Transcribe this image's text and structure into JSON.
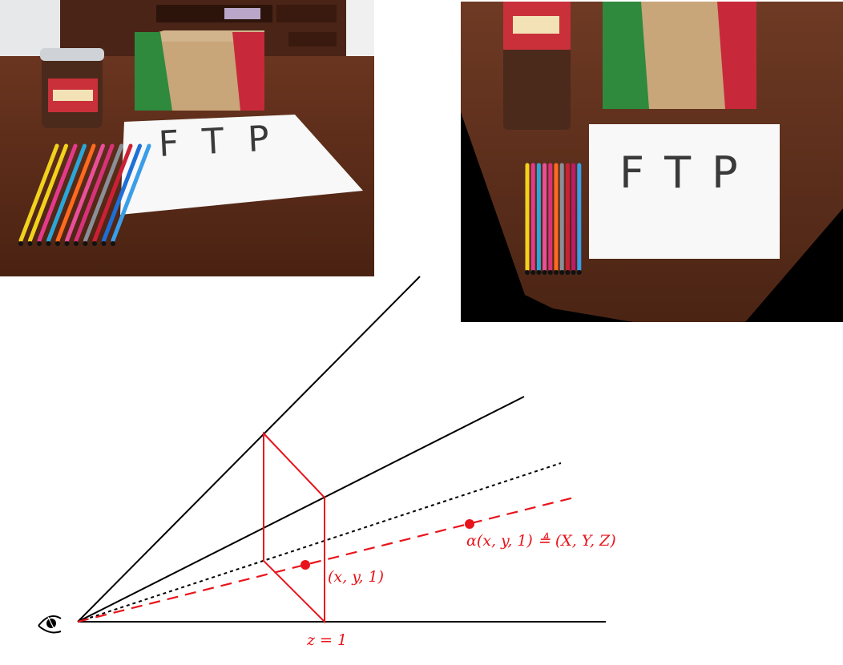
{
  "photo_left": {
    "paper_text": "FTP",
    "pen_colors": [
      "#f2d21c",
      "#f2d21c",
      "#e53a8c",
      "#2aa7d9",
      "#ff6a1f",
      "#ea4f9a",
      "#d8327a",
      "#8a8f98",
      "#cc2037",
      "#1e6fd6",
      "#3a9ee8"
    ]
  },
  "photo_right": {
    "paper_text": "FTP",
    "pen_colors": [
      "#f2d21c",
      "#e53a8c",
      "#2aa7d9",
      "#ea4f9a",
      "#d8327a",
      "#ff6a1f",
      "#8a8f98",
      "#cc2037",
      "#c01a6a",
      "#3a9ee8"
    ]
  },
  "diagram": {
    "label_point": "(x, y, 1)",
    "label_scaled": "α(x, y, 1) ≜ (X, Y, Z)",
    "label_plane": "z = 1",
    "colors": {
      "accent": "#e8141b",
      "line": "#000000"
    }
  }
}
